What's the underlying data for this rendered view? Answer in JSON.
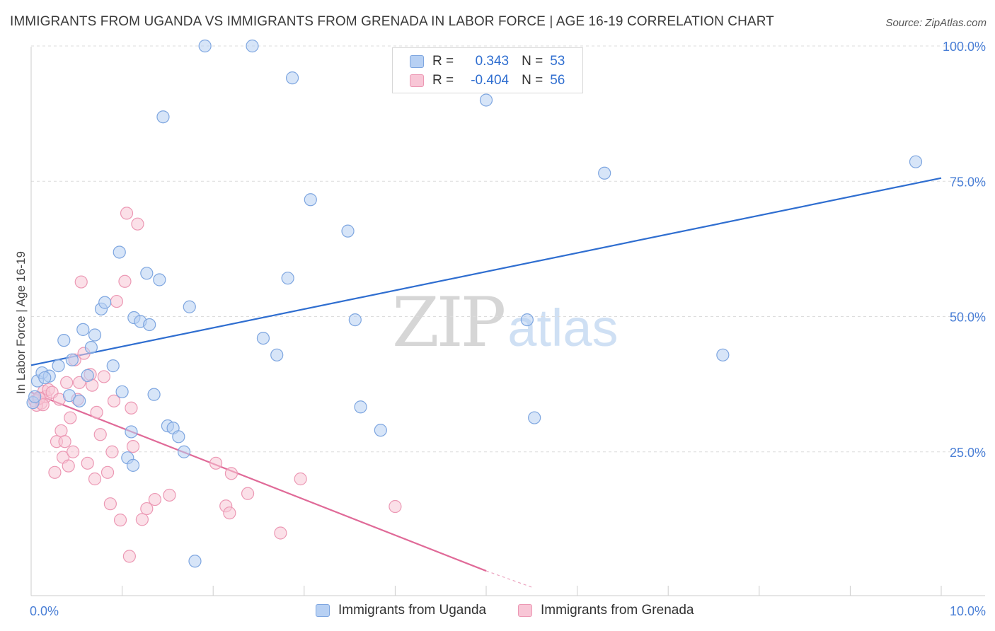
{
  "title": "IMMIGRANTS FROM UGANDA VS IMMIGRANTS FROM GRENADA IN LABOR FORCE | AGE 16-19 CORRELATION CHART",
  "source": "Source: ZipAtlas.com",
  "watermark": {
    "zip": "ZIP",
    "atlas": "atlas"
  },
  "legend": {
    "r_label": "R =",
    "n_label": "N =",
    "uganda": {
      "r": "0.343",
      "n": "53"
    },
    "grenada": {
      "r": "-0.404",
      "n": "56"
    }
  },
  "colors": {
    "uganda_fill": "#b7d0f3",
    "uganda_stroke": "#7ea6e0",
    "uganda_line": "#2f6ed0",
    "grenada_fill": "#f8c6d6",
    "grenada_stroke": "#ec98b4",
    "grenada_line": "#e06a98",
    "tick_text": "#4a7fd6",
    "grid": "#dcdcdc"
  },
  "chart_data": {
    "type": "scatter",
    "title": "IMMIGRANTS FROM UGANDA VS IMMIGRANTS FROM GRENADA IN LABOR FORCE | AGE 16-19 CORRELATION CHART",
    "xlabel": "",
    "ylabel": "In Labor Force | Age 16-19",
    "xlim": [
      0,
      10
    ],
    "ylim": [
      0,
      105
    ],
    "x_tick_labels": [
      "0.0%",
      "10.0%"
    ],
    "y_ticks": [
      25,
      50,
      75,
      100
    ],
    "y_tick_labels": [
      "25.0%",
      "50.0%",
      "75.0%",
      "100.0%"
    ],
    "grid": "horizontal dashed",
    "legend_position": "top-center",
    "series": [
      {
        "name": "Immigrants from Uganda",
        "color": "#b7d0f3",
        "trend": {
          "x": [
            0,
            10
          ],
          "y": [
            41.0,
            75.6
          ]
        },
        "points": [
          [
            0.07,
            38.1
          ],
          [
            0.02,
            34.1
          ],
          [
            0.12,
            39.6
          ],
          [
            0.2,
            39.0
          ],
          [
            0.15,
            38.7
          ],
          [
            0.3,
            40.9
          ],
          [
            0.36,
            45.6
          ],
          [
            0.42,
            35.4
          ],
          [
            0.45,
            42.0
          ],
          [
            0.53,
            34.4
          ],
          [
            0.57,
            47.6
          ],
          [
            0.62,
            39.1
          ],
          [
            0.66,
            44.3
          ],
          [
            0.7,
            46.6
          ],
          [
            0.77,
            51.4
          ],
          [
            0.81,
            52.6
          ],
          [
            0.9,
            40.9
          ],
          [
            0.97,
            61.9
          ],
          [
            1.0,
            36.1
          ],
          [
            1.06,
            23.9
          ],
          [
            1.1,
            28.7
          ],
          [
            1.12,
            22.5
          ],
          [
            1.13,
            49.8
          ],
          [
            1.2,
            49.1
          ],
          [
            1.27,
            58.0
          ],
          [
            1.3,
            48.5
          ],
          [
            1.35,
            35.6
          ],
          [
            1.41,
            56.8
          ],
          [
            1.45,
            86.9
          ],
          [
            1.5,
            29.8
          ],
          [
            1.56,
            29.4
          ],
          [
            1.62,
            27.8
          ],
          [
            1.68,
            25.0
          ],
          [
            1.74,
            51.8
          ],
          [
            1.8,
            4.8
          ],
          [
            1.91,
            100.0
          ],
          [
            2.43,
            100.0
          ],
          [
            2.55,
            46.0
          ],
          [
            2.7,
            42.9
          ],
          [
            2.82,
            57.1
          ],
          [
            2.87,
            94.1
          ],
          [
            3.07,
            71.6
          ],
          [
            3.48,
            65.8
          ],
          [
            3.56,
            49.4
          ],
          [
            3.62,
            33.3
          ],
          [
            3.84,
            29.0
          ],
          [
            5.0,
            90.0
          ],
          [
            5.45,
            49.4
          ],
          [
            5.53,
            31.3
          ],
          [
            6.3,
            76.5
          ],
          [
            7.6,
            42.9
          ],
          [
            9.72,
            78.6
          ],
          [
            0.04,
            35.2
          ]
        ]
      },
      {
        "name": "Immigrants from Grenada",
        "color": "#f8c6d6",
        "trend": {
          "x": [
            0,
            5.0
          ],
          "y": [
            36.0,
            3.0
          ],
          "dashed_extension": {
            "x": [
              5.0,
              5.5
            ],
            "y": [
              3.0,
              0
            ]
          }
        },
        "points": [
          [
            0.04,
            34.4
          ],
          [
            0.08,
            35.0
          ],
          [
            0.11,
            34.0
          ],
          [
            0.14,
            36.2
          ],
          [
            0.16,
            35.2
          ],
          [
            0.19,
            36.5
          ],
          [
            0.23,
            36.0
          ],
          [
            0.26,
            21.2
          ],
          [
            0.28,
            26.9
          ],
          [
            0.31,
            34.7
          ],
          [
            0.33,
            28.9
          ],
          [
            0.35,
            24.0
          ],
          [
            0.37,
            26.9
          ],
          [
            0.39,
            37.8
          ],
          [
            0.41,
            22.4
          ],
          [
            0.43,
            31.3
          ],
          [
            0.46,
            25.0
          ],
          [
            0.48,
            42.0
          ],
          [
            0.51,
            34.7
          ],
          [
            0.53,
            37.8
          ],
          [
            0.55,
            56.4
          ],
          [
            0.58,
            43.2
          ],
          [
            0.62,
            22.9
          ],
          [
            0.65,
            39.3
          ],
          [
            0.67,
            37.3
          ],
          [
            0.7,
            20.0
          ],
          [
            0.72,
            32.3
          ],
          [
            0.76,
            28.2
          ],
          [
            0.8,
            38.9
          ],
          [
            0.84,
            21.2
          ],
          [
            0.87,
            15.4
          ],
          [
            0.89,
            25.0
          ],
          [
            0.91,
            34.4
          ],
          [
            0.94,
            52.8
          ],
          [
            0.98,
            12.4
          ],
          [
            1.03,
            56.5
          ],
          [
            1.05,
            69.1
          ],
          [
            1.08,
            5.7
          ],
          [
            1.1,
            33.1
          ],
          [
            1.12,
            26.0
          ],
          [
            1.17,
            67.1
          ],
          [
            1.22,
            12.5
          ],
          [
            1.27,
            14.5
          ],
          [
            1.36,
            16.2
          ],
          [
            1.52,
            17.0
          ],
          [
            2.03,
            22.9
          ],
          [
            2.14,
            15.0
          ],
          [
            2.18,
            13.7
          ],
          [
            2.2,
            21.0
          ],
          [
            2.38,
            17.3
          ],
          [
            2.74,
            10.0
          ],
          [
            2.96,
            20.0
          ],
          [
            4.0,
            14.9
          ],
          [
            0.06,
            33.6
          ],
          [
            0.09,
            34.9
          ],
          [
            0.13,
            33.7
          ]
        ]
      }
    ]
  },
  "bottom_legend": [
    "Immigrants from Uganda",
    "Immigrants from Grenada"
  ]
}
